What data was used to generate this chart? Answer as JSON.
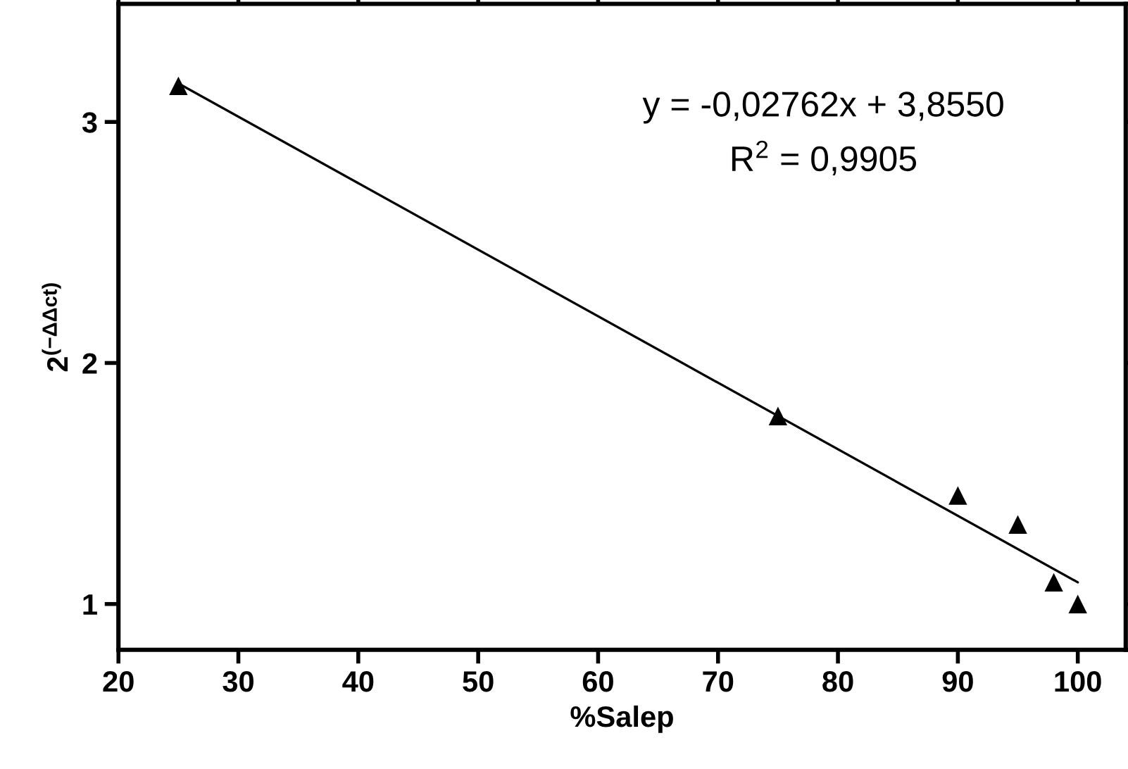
{
  "chart_data": {
    "type": "scatter",
    "xlabel": "%Salep",
    "ylabel": "2$^{(−ΔΔct)}$",
    "xlim": [
      20,
      104
    ],
    "ylim": [
      0.81,
      3.49
    ],
    "xticks": [
      20,
      30,
      40,
      50,
      60,
      70,
      80,
      90,
      100
    ],
    "yticks": [
      1,
      2,
      3
    ],
    "grid": false,
    "legend": false,
    "marker": "triangle",
    "series": [
      {
        "color": "#000000",
        "x": [
          25,
          75,
          90,
          95,
          98,
          100
        ],
        "values": [
          3.15,
          1.78,
          1.45,
          1.33,
          1.09,
          1.0
        ]
      },
      {
        "type": "line",
        "color": "#000000",
        "marker": "none",
        "line_style": "solid",
        "x": [
          25,
          100
        ],
        "values": [
          3.16,
          1.09
        ]
      }
    ],
    "annotations": [
      "y = -0,02762x + 3,8550",
      "R$^{2}$ = 0,9905"
    ]
  }
}
